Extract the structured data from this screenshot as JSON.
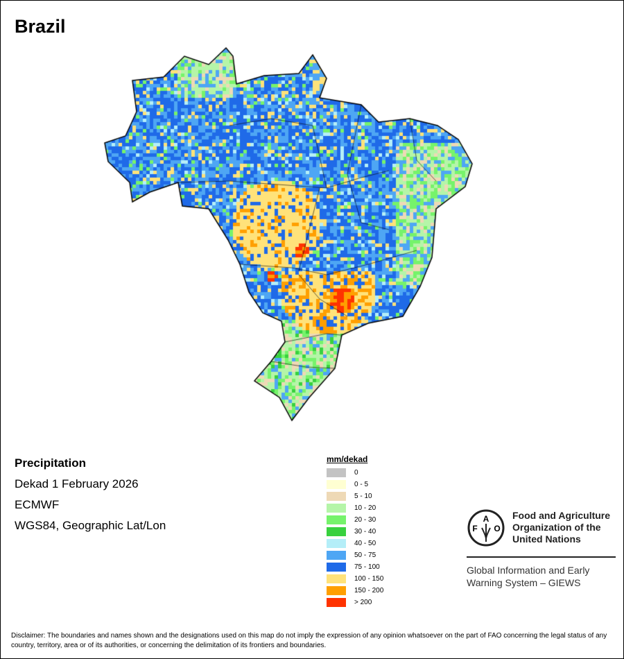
{
  "title": "Brazil",
  "info": {
    "variable": "Precipitation",
    "period": "Dekad 1 February 2026",
    "source": "ECMWF",
    "projection": "WGS84, Geographic Lat/Lon"
  },
  "legend": {
    "unit": "mm/dekad",
    "classes": [
      {
        "label": "0",
        "color": "#c3c3c3"
      },
      {
        "label": "0 - 5",
        "color": "#ffffd2"
      },
      {
        "label": "5 - 10",
        "color": "#eed9b6"
      },
      {
        "label": "10 - 20",
        "color": "#b5f5a8"
      },
      {
        "label": "20 - 30",
        "color": "#76f36b"
      },
      {
        "label": "30 - 40",
        "color": "#38d13e"
      },
      {
        "label": "40 - 50",
        "color": "#b4eef8"
      },
      {
        "label": "50 - 75",
        "color": "#4ea6f4"
      },
      {
        "label": "75 - 100",
        "color": "#1f6ae8"
      },
      {
        "label": "100 - 150",
        "color": "#ffe27a"
      },
      {
        "label": "150 - 200",
        "color": "#ff9f00"
      },
      {
        "label": "> 200",
        "color": "#ff3300"
      }
    ]
  },
  "logo": {
    "org": "Food and Agriculture\nOrganization of the\nUnited Nations",
    "emblem_text": "FAO FIAT PANIS",
    "system": "Global Information and Early\nWarning System – GIEWS"
  },
  "disclaimer": "Disclaimer: The boundaries and names shown and the designations used on this map do not imply the expression of any opinion whatsoever on the part of FAO concerning the legal status of any country, territory, area or of its authorities, or concerning the delimitation of its frontiers and boundaries."
}
